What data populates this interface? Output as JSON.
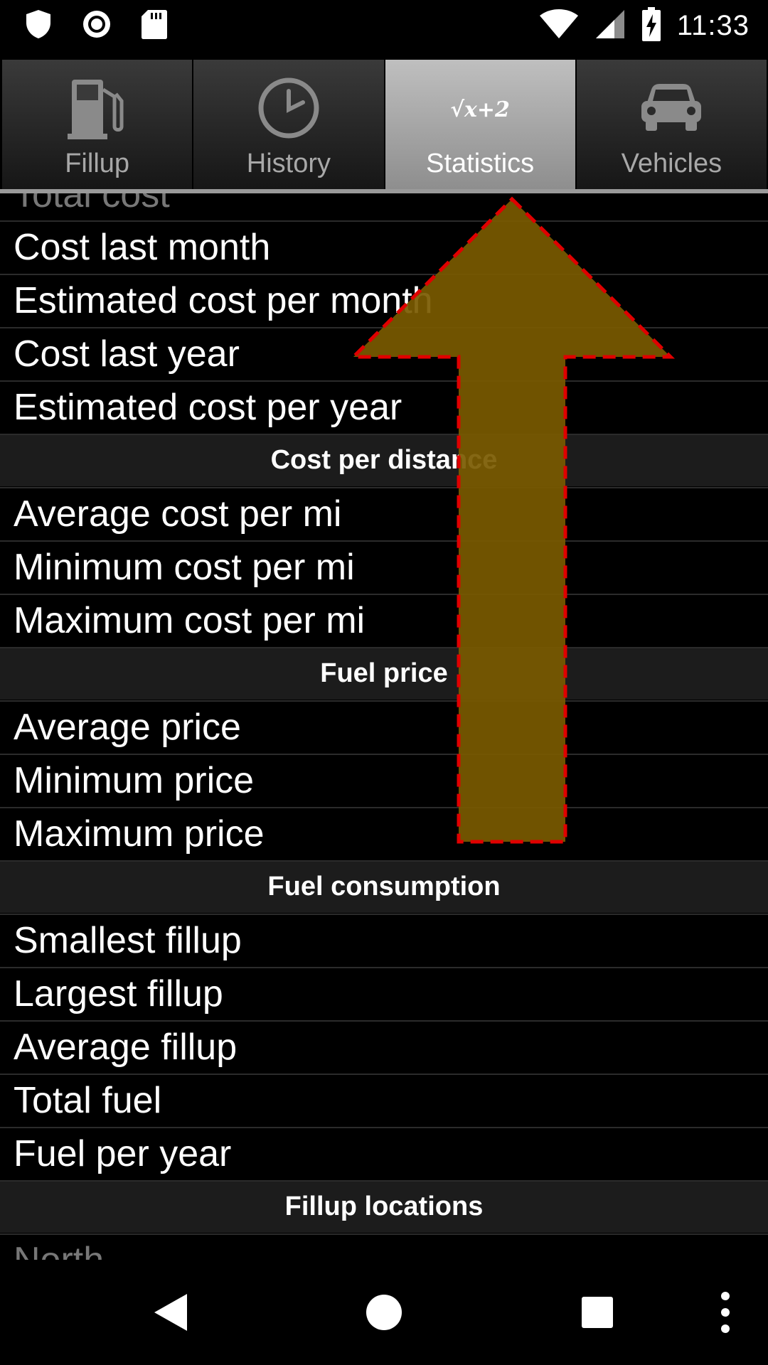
{
  "status_bar": {
    "time": "11:33",
    "left_icons": [
      "shield-icon",
      "record-icon",
      "sd-card-icon"
    ],
    "right_icons": [
      "wifi-icon",
      "cell-signal-icon",
      "battery-charging-icon"
    ]
  },
  "tabs": [
    {
      "label": "Fillup",
      "icon": "fuel-pump-icon",
      "active": false
    },
    {
      "label": "History",
      "icon": "clock-icon",
      "active": false
    },
    {
      "label": "Statistics",
      "icon": "math-formula-icon",
      "icon_text": "√x+2",
      "active": true
    },
    {
      "label": "Vehicles",
      "icon": "car-icon",
      "active": false
    }
  ],
  "list": {
    "partial_top": "Total cost",
    "rows_cost": [
      "Cost last month",
      "Estimated cost per month",
      "Cost last year",
      "Estimated cost per year"
    ],
    "section_cost_per_distance": "Cost per distance",
    "rows_cost_per_distance": [
      "Average cost per mi",
      "Minimum cost per mi",
      "Maximum cost per mi"
    ],
    "section_fuel_price": "Fuel price",
    "rows_fuel_price": [
      "Average price",
      "Minimum price",
      "Maximum price"
    ],
    "section_fuel_consumption": "Fuel consumption",
    "rows_fuel_consumption": [
      "Smallest fillup",
      "Largest fillup",
      "Average fillup",
      "Total fuel",
      "Fuel per year"
    ],
    "section_fillup_locations": "Fillup locations",
    "partial_bottom": "North"
  },
  "overlay": {
    "gesture": "swipe-up-arrow",
    "fill_color": "#7a5a00",
    "border_color": "#e00000"
  },
  "nav_bar": {
    "buttons": [
      "back-icon",
      "home-icon",
      "recents-icon",
      "overflow-menu-icon"
    ]
  }
}
